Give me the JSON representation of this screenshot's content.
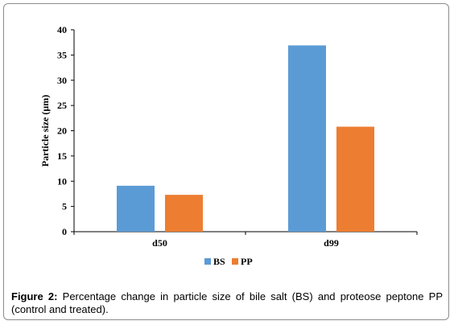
{
  "chart_data": {
    "type": "bar",
    "categories": [
      "d50",
      "d99"
    ],
    "series": [
      {
        "name": "BS",
        "values": [
          9.1,
          36.9
        ],
        "color": "#5b9bd5"
      },
      {
        "name": "PP",
        "values": [
          7.3,
          20.8
        ],
        "color": "#ed7d31"
      }
    ],
    "ylabel": "Particle size (µm)",
    "ylim": [
      0,
      40
    ],
    "yticks": [
      0,
      5,
      10,
      15,
      20,
      25,
      30,
      35,
      40
    ],
    "grid": false,
    "legend_placement": "bottom"
  },
  "caption": {
    "label": "Figure 2:",
    "text": " Percentage change in particle size of bile salt (BS) and proteose peptone PP (control and treated)."
  }
}
